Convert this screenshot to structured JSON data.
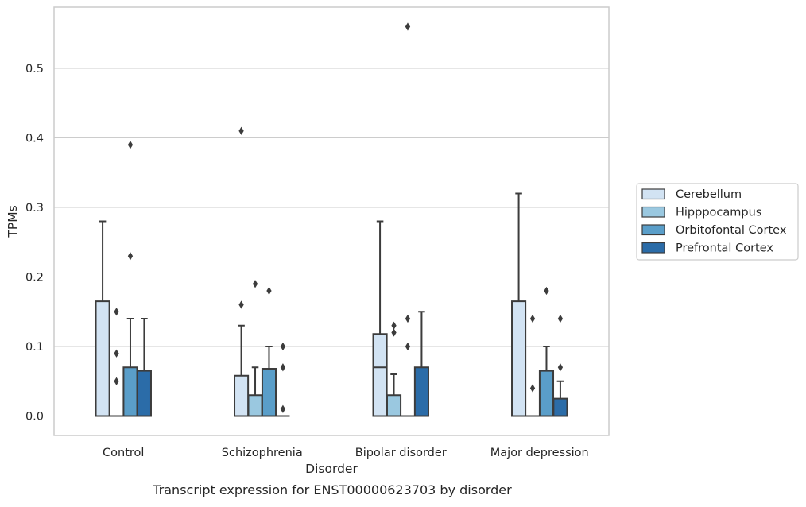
{
  "chart_data": {
    "type": "box",
    "title": "",
    "caption": "Transcript expression for ENST00000623703 by disorder",
    "xlabel": "Disorder",
    "ylabel": "TPMs",
    "ylim": [
      -0.028,
      0.588
    ],
    "yticks": [
      0.0,
      0.1,
      0.2,
      0.3,
      0.4,
      0.5
    ],
    "ytick_labels": [
      "0.0",
      "0.1",
      "0.2",
      "0.3",
      "0.4",
      "0.5"
    ],
    "grid": "horizontal",
    "legend_position": "right-center",
    "categories": [
      "Control",
      "Schizophrenia",
      "Bipolar disorder",
      "Major depression"
    ],
    "series": [
      {
        "name": "Cerebellum",
        "color": "#d2e3f3",
        "boxes": [
          {
            "whislo": 0.0,
            "q1": 0.0,
            "med": 0.0,
            "q3": 0.165,
            "whishi": 0.28,
            "fliers": []
          },
          {
            "whislo": 0.0,
            "q1": 0.0,
            "med": 0.0,
            "q3": 0.058,
            "whishi": 0.13,
            "fliers": [
              0.16,
              0.41
            ]
          },
          {
            "whislo": 0.0,
            "q1": 0.0,
            "med": 0.07,
            "q3": 0.118,
            "whishi": 0.28,
            "fliers": []
          },
          {
            "whislo": 0.0,
            "q1": 0.0,
            "med": 0.0,
            "q3": 0.165,
            "whishi": 0.32,
            "fliers": []
          }
        ]
      },
      {
        "name": "Hipppocampus",
        "color": "#9ac8e0",
        "boxes": [
          {
            "whislo": 0.0,
            "q1": 0.0,
            "med": 0.0,
            "q3": 0.0,
            "whishi": 0.0,
            "fliers": [
              0.05,
              0.09,
              0.15
            ]
          },
          {
            "whislo": 0.0,
            "q1": 0.0,
            "med": 0.0,
            "q3": 0.03,
            "whishi": 0.07,
            "fliers": [
              0.19
            ]
          },
          {
            "whislo": 0.0,
            "q1": 0.0,
            "med": 0.0,
            "q3": 0.03,
            "whishi": 0.06,
            "fliers": [
              0.12,
              0.13
            ]
          },
          {
            "whislo": 0.0,
            "q1": 0.0,
            "med": 0.0,
            "q3": 0.0,
            "whishi": 0.0,
            "fliers": [
              0.04,
              0.14
            ]
          }
        ]
      },
      {
        "name": "Orbitofontal Cortex",
        "color": "#5a9ec9",
        "boxes": [
          {
            "whislo": 0.0,
            "q1": 0.0,
            "med": 0.0,
            "q3": 0.07,
            "whishi": 0.14,
            "fliers": [
              0.23,
              0.39
            ]
          },
          {
            "whislo": 0.0,
            "q1": 0.0,
            "med": 0.0,
            "q3": 0.068,
            "whishi": 0.1,
            "fliers": [
              0.18
            ]
          },
          {
            "whislo": 0.0,
            "q1": 0.0,
            "med": 0.0,
            "q3": 0.0,
            "whishi": 0.0,
            "fliers": [
              0.1,
              0.14,
              0.56
            ]
          },
          {
            "whislo": 0.0,
            "q1": 0.0,
            "med": 0.0,
            "q3": 0.065,
            "whishi": 0.1,
            "fliers": [
              0.18
            ]
          }
        ]
      },
      {
        "name": "Prefrontal Cortex",
        "color": "#2b6ca8",
        "boxes": [
          {
            "whislo": 0.0,
            "q1": 0.0,
            "med": 0.0,
            "q3": 0.065,
            "whishi": 0.14,
            "fliers": []
          },
          {
            "whislo": 0.0,
            "q1": 0.0,
            "med": 0.0,
            "q3": 0.0,
            "whishi": 0.0,
            "fliers": [
              0.01,
              0.07,
              0.1
            ]
          },
          {
            "whislo": 0.0,
            "q1": 0.0,
            "med": 0.0,
            "q3": 0.07,
            "whishi": 0.15,
            "fliers": []
          },
          {
            "whislo": 0.0,
            "q1": 0.0,
            "med": 0.0,
            "q3": 0.025,
            "whishi": 0.05,
            "fliers": [
              0.07,
              0.14
            ]
          }
        ]
      }
    ]
  }
}
